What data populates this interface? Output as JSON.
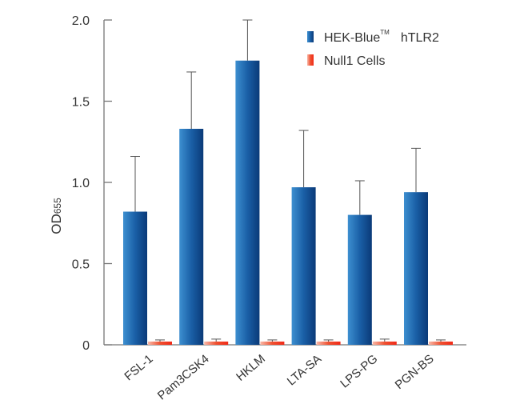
{
  "chart_data": {
    "type": "bar",
    "title": "",
    "xlabel": "",
    "ylabel": "OD",
    "ylabel_subscript": "655",
    "ylim": [
      0,
      2.0
    ],
    "yticks": [
      "0",
      "0.5",
      "1.0",
      "1.5",
      "2.0"
    ],
    "ytick_values": [
      0,
      0.5,
      1.0,
      1.5,
      2.0
    ],
    "grid": false,
    "legend_position": "top-right",
    "categories": [
      "FSL-1",
      "Pam3CSK4",
      "HKLM",
      "LTA-SA",
      "LPS-PG",
      "PGN-BS"
    ],
    "series": [
      {
        "name": "HEK-Blue",
        "name_superscript": "TM",
        "name_suffix": "hTLR2",
        "color": "#0d4a8e",
        "values": [
          0.82,
          1.33,
          1.75,
          0.97,
          0.8,
          0.94
        ],
        "error_upper": [
          1.16,
          1.68,
          2.0,
          1.32,
          1.01,
          1.21
        ]
      },
      {
        "name": "Null1 Cells",
        "color": "#f03a20",
        "values": [
          0.02,
          0.02,
          0.02,
          0.02,
          0.02,
          0.02
        ],
        "error_upper": [
          0.03,
          0.035,
          0.03,
          0.03,
          0.035,
          0.03
        ]
      }
    ]
  }
}
